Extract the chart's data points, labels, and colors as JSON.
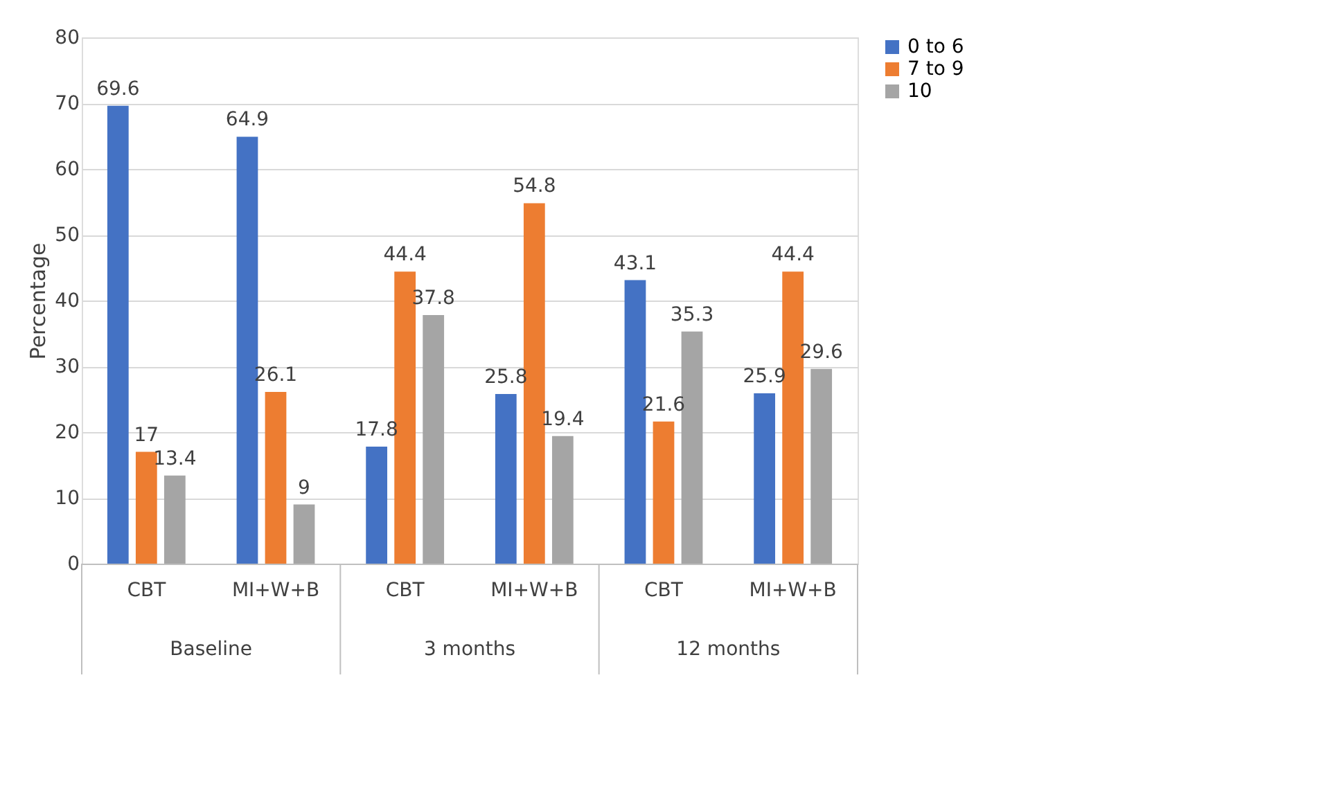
{
  "chart_data": {
    "type": "bar",
    "ylabel": "Percentage",
    "categories": [
      "CBT",
      "MI+W+B",
      "CBT",
      "MI+W+B",
      "CBT",
      "MI+W+B"
    ],
    "series": [
      {
        "name": "0 to 6",
        "color": "#4472c4",
        "values": [
          69.6,
          64.9,
          17.8,
          25.8,
          43.1,
          25.9
        ]
      },
      {
        "name": "7 to 9",
        "color": "#ed7d31",
        "values": [
          17,
          26.1,
          44.4,
          54.8,
          21.6,
          44.4
        ]
      },
      {
        "name": "10",
        "color": "#a5a5a5",
        "values": [
          13.4,
          9,
          37.8,
          19.4,
          35.3,
          29.6
        ]
      }
    ],
    "annotations": [
      "Baseline",
      "3 months",
      "12 months"
    ],
    "ylim": [
      0,
      80
    ],
    "yticks": [
      0,
      10,
      20,
      30,
      40,
      50,
      60,
      70,
      80
    ],
    "grid": "y",
    "legend": "right",
    "data_labels": true
  }
}
